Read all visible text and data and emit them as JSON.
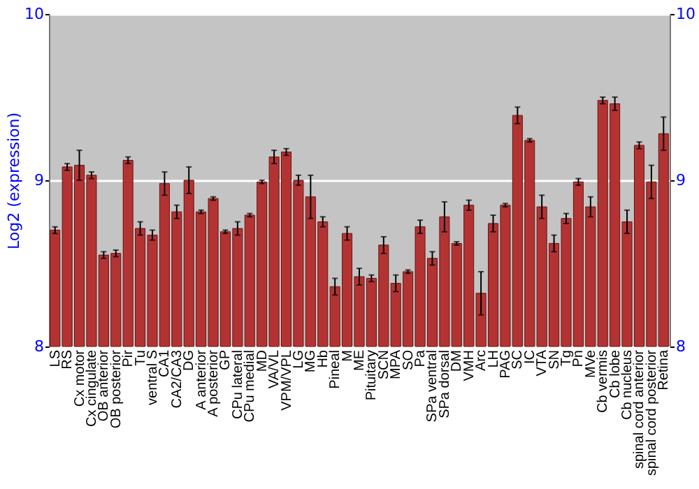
{
  "chart_data": {
    "type": "bar",
    "ylabel": "Log2 (expression)",
    "categories": [
      "LS",
      "RS",
      "Cx motor",
      "Cx cingulate",
      "OB anterior",
      "OB posterior",
      "Pir",
      "Tu",
      "ventral S",
      "CA1",
      "CA2/CA3",
      "DG",
      "A anterior",
      "A posterior",
      "GP",
      "CPu lateral",
      "CPu medial",
      "MD",
      "VA/VL",
      "VPM/VPL",
      "LG",
      "MG",
      "Hb",
      "Pineal",
      "M",
      "ME",
      "Pituitary",
      "SCN",
      "MPA",
      "SO",
      "Pa",
      "SPa ventral",
      "SPa dorsal",
      "DM",
      "VMH",
      "Arc",
      "LH",
      "PAG",
      "SC",
      "IC",
      "VTA",
      "SN",
      "Tg",
      "Pn",
      "MVe",
      "Cb vermis",
      "Cb lobe",
      "Cb nucleus",
      "spinal cord anterior",
      "spinal cord posterior",
      "Retina"
    ],
    "values": [
      8.7,
      9.08,
      9.09,
      9.03,
      8.55,
      8.56,
      9.12,
      8.71,
      8.67,
      8.98,
      8.81,
      9.0,
      8.81,
      8.89,
      8.69,
      8.71,
      8.79,
      8.99,
      9.14,
      9.17,
      9.0,
      8.9,
      8.75,
      8.36,
      8.68,
      8.42,
      8.41,
      8.61,
      8.38,
      8.45,
      8.72,
      8.53,
      8.78,
      8.62,
      8.85,
      8.32,
      8.74,
      8.85,
      9.39,
      9.24,
      8.84,
      8.62,
      8.77,
      8.99,
      8.84,
      9.48,
      9.46,
      8.75,
      9.21,
      8.99,
      9.28
    ],
    "errors": [
      0.02,
      0.02,
      0.09,
      0.02,
      0.02,
      0.02,
      0.02,
      0.04,
      0.03,
      0.07,
      0.04,
      0.08,
      0.01,
      0.01,
      0.01,
      0.04,
      0.01,
      0.01,
      0.04,
      0.02,
      0.03,
      0.13,
      0.03,
      0.05,
      0.04,
      0.05,
      0.02,
      0.05,
      0.05,
      0.01,
      0.04,
      0.04,
      0.09,
      0.01,
      0.03,
      0.13,
      0.05,
      0.01,
      0.05,
      0.01,
      0.07,
      0.05,
      0.03,
      0.02,
      0.06,
      0.02,
      0.04,
      0.07,
      0.02,
      0.1,
      0.1
    ],
    "color": "#b33333",
    "ylim": [
      8,
      10
    ],
    "yticks": [
      8,
      9,
      10
    ],
    "y2lim": [
      8,
      10
    ],
    "y2ticks": [
      8,
      9,
      10
    ],
    "grid": "y"
  }
}
